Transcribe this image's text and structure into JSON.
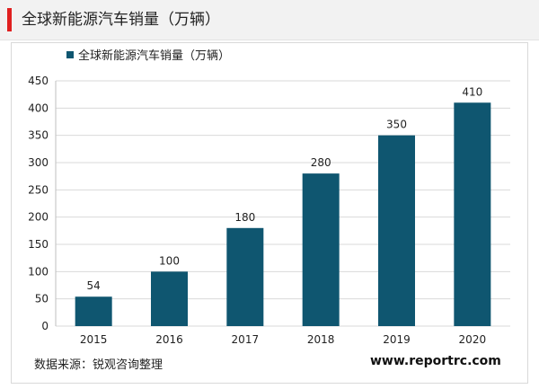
{
  "header": {
    "title": "全球新能源汽车销量（万辆）"
  },
  "colors": {
    "accent": "#e02020",
    "bar": "#0f5670",
    "grid": "#d9d9d9"
  },
  "footer": {
    "source": "数据来源：锐观咨询整理",
    "website": "www.reportrc.com"
  },
  "chart_data": {
    "type": "bar",
    "categories": [
      "2015",
      "2016",
      "2017",
      "2018",
      "2019",
      "2020"
    ],
    "series": [
      {
        "name": "全球新能源汽车销量（万辆）",
        "values": [
          54,
          100,
          180,
          280,
          350,
          410
        ]
      }
    ],
    "ylim": [
      0,
      450
    ],
    "yticks": [
      0,
      50,
      100,
      150,
      200,
      250,
      300,
      350,
      400,
      450
    ],
    "grid": true,
    "legend": "top-left",
    "data_labels": true
  }
}
